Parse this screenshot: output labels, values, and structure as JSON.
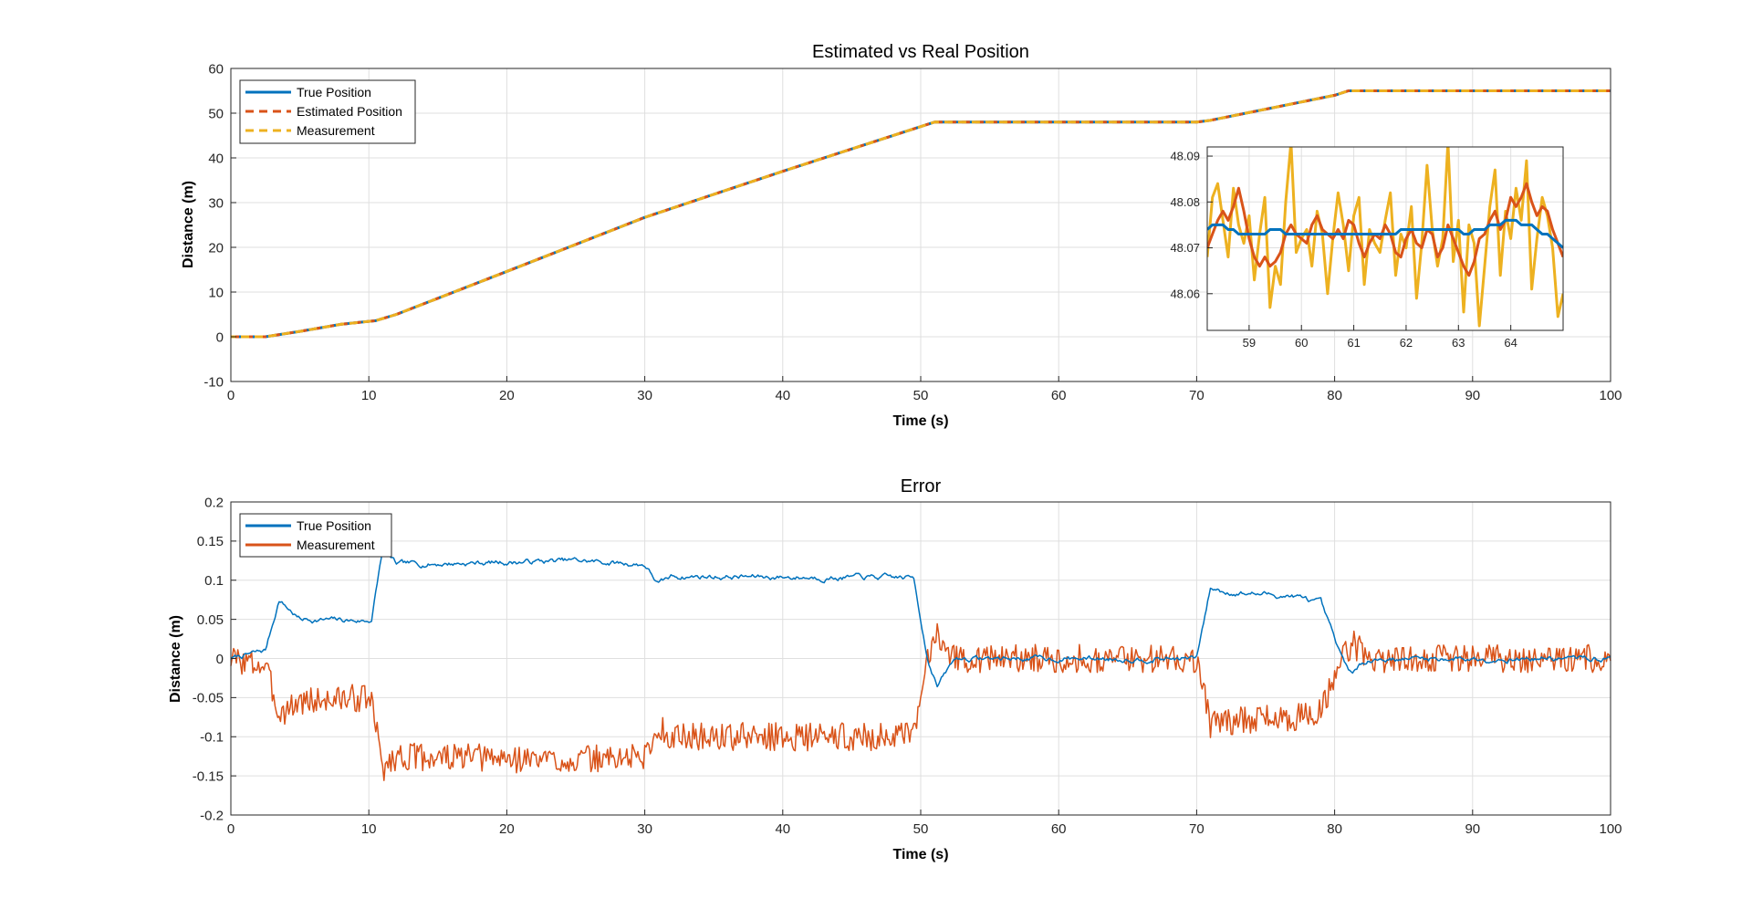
{
  "chart_data": [
    {
      "type": "line",
      "title": "Estimated vs Real Position",
      "xlabel": "Time (s)",
      "ylabel": "Distance (m)",
      "xlim": [
        0,
        100
      ],
      "ylim": [
        -10,
        60
      ],
      "xticks": [
        "0",
        "10",
        "20",
        "30",
        "40",
        "50",
        "60",
        "70",
        "80",
        "90",
        "100"
      ],
      "yticks": [
        "-10",
        "0",
        "10",
        "20",
        "30",
        "40",
        "50",
        "60"
      ],
      "grid": true,
      "legend_position": "top-left",
      "series": [
        {
          "name": "True Position",
          "color": "#0072BD",
          "style": "solid",
          "x": [
            0,
            2.5,
            5,
            8,
            10.5,
            12,
            20,
            30,
            40,
            50,
            51,
            60,
            70,
            71,
            80,
            81,
            90,
            100
          ],
          "y": [
            0,
            0,
            1.2,
            2.8,
            3.6,
            5,
            14.6,
            26.7,
            37,
            47,
            48,
            48,
            48,
            48.4,
            54,
            55,
            55,
            55
          ]
        },
        {
          "name": "Estimated Position",
          "color": "#D95319",
          "style": "dashed",
          "x": [
            0,
            2.5,
            5,
            8,
            10.5,
            12,
            20,
            30,
            40,
            50,
            51,
            60,
            70,
            71,
            80,
            81,
            90,
            100
          ],
          "y": [
            0,
            0,
            1.2,
            2.8,
            3.6,
            5,
            14.6,
            26.7,
            37,
            47,
            48,
            48,
            48,
            48.4,
            54,
            55,
            55,
            55
          ]
        },
        {
          "name": "Measurement",
          "color": "#EDB120",
          "style": "dashed",
          "x": [
            0,
            2.5,
            5,
            8,
            10.5,
            12,
            20,
            30,
            40,
            50,
            51,
            60,
            70,
            71,
            80,
            81,
            90,
            100
          ],
          "y": [
            0,
            0,
            1.2,
            2.8,
            3.6,
            5,
            14.6,
            26.7,
            37,
            47,
            48,
            48,
            48,
            48.4,
            54,
            55,
            55,
            55
          ]
        }
      ],
      "inset": {
        "xlim": [
          58.2,
          65
        ],
        "ylim": [
          48.052,
          48.092
        ],
        "xticks": [
          "59",
          "60",
          "61",
          "62",
          "63",
          "64"
        ],
        "yticks": [
          "48.06",
          "48.07",
          "48.08",
          "48.09"
        ],
        "x_start": 58.2,
        "x_step": 0.1,
        "true_position": [
          48.074,
          48.075,
          48.075,
          48.075,
          48.074,
          48.074,
          48.073,
          48.073,
          48.073,
          48.073,
          48.073,
          48.073,
          48.074,
          48.074,
          48.074,
          48.073,
          48.073,
          48.073,
          48.073,
          48.073,
          48.073,
          48.073,
          48.073,
          48.073,
          48.073,
          48.073,
          48.073,
          48.073,
          48.073,
          48.073,
          48.073,
          48.073,
          48.073,
          48.073,
          48.073,
          48.073,
          48.073,
          48.074,
          48.074,
          48.074,
          48.074,
          48.074,
          48.074,
          48.074,
          48.074,
          48.074,
          48.074,
          48.074,
          48.074,
          48.073,
          48.073,
          48.074,
          48.074,
          48.074,
          48.075,
          48.075,
          48.075,
          48.076,
          48.076,
          48.076,
          48.075,
          48.075,
          48.075,
          48.074,
          48.073,
          48.073,
          48.072,
          48.071,
          48.07
        ],
        "estimated_position": [
          48.07,
          48.073,
          48.076,
          48.078,
          48.076,
          48.079,
          48.083,
          48.078,
          48.072,
          48.068,
          48.066,
          48.068,
          48.066,
          48.067,
          48.069,
          48.073,
          48.075,
          48.073,
          48.072,
          48.071,
          48.075,
          48.077,
          48.074,
          48.073,
          48.072,
          48.074,
          48.072,
          48.076,
          48.075,
          48.071,
          48.068,
          48.071,
          48.073,
          48.072,
          48.075,
          48.073,
          48.069,
          48.068,
          48.072,
          48.074,
          48.071,
          48.07,
          48.074,
          48.073,
          48.068,
          48.07,
          48.075,
          48.072,
          48.069,
          48.066,
          48.064,
          48.067,
          48.072,
          48.073,
          48.076,
          48.078,
          48.074,
          48.076,
          48.081,
          48.079,
          48.081,
          48.084,
          48.08,
          48.077,
          48.079,
          48.078,
          48.074,
          48.071,
          48.068
        ],
        "measurement": [
          48.068,
          48.081,
          48.084,
          48.076,
          48.068,
          48.083,
          48.075,
          48.071,
          48.077,
          48.063,
          48.073,
          48.081,
          48.057,
          48.066,
          48.062,
          48.08,
          48.093,
          48.069,
          48.072,
          48.074,
          48.066,
          48.078,
          48.073,
          48.06,
          48.072,
          48.082,
          48.075,
          48.065,
          48.077,
          48.081,
          48.062,
          48.074,
          48.071,
          48.069,
          48.076,
          48.082,
          48.064,
          48.073,
          48.07,
          48.079,
          48.059,
          48.071,
          48.088,
          48.074,
          48.066,
          48.072,
          48.093,
          48.067,
          48.076,
          48.056,
          48.075,
          48.071,
          48.053,
          48.066,
          48.079,
          48.087,
          48.064,
          48.078,
          48.072,
          48.083,
          48.076,
          48.089,
          48.061,
          48.072,
          48.081,
          48.077,
          48.07,
          48.055,
          48.06
        ]
      }
    },
    {
      "type": "line",
      "title": "Error",
      "xlabel": "Time (s)",
      "ylabel": "Distance (m)",
      "xlim": [
        0,
        100
      ],
      "ylim": [
        -0.2,
        0.2
      ],
      "xticks": [
        "0",
        "10",
        "20",
        "30",
        "40",
        "50",
        "60",
        "70",
        "80",
        "90",
        "100"
      ],
      "yticks": [
        "-0.2",
        "-0.15",
        "-0.1",
        "-0.05",
        "0",
        "0.05",
        "0.1",
        "0.15",
        "0.2"
      ],
      "grid": true,
      "legend_position": "top-left",
      "sample_dt": 0.1,
      "series": [
        {
          "name": "True Position",
          "color": "#0072BD",
          "noise": 0.004,
          "seed": 7,
          "segments": [
            [
              0,
              0
            ],
            [
              2.5,
              0.01
            ],
            [
              3.5,
              0.075
            ],
            [
              5,
              0.05
            ],
            [
              9.8,
              0.048
            ],
            [
              10.2,
              0.05
            ],
            [
              11,
              0.14
            ],
            [
              12,
              0.12
            ],
            [
              25,
              0.125
            ],
            [
              30,
              0.12
            ],
            [
              31,
              0.095
            ],
            [
              32,
              0.105
            ],
            [
              49.5,
              0.103
            ],
            [
              50.5,
              0.0
            ],
            [
              51.2,
              -0.035
            ],
            [
              52.5,
              0.0
            ],
            [
              70,
              0.0
            ],
            [
              71,
              0.09
            ],
            [
              72,
              0.085
            ],
            [
              77,
              0.08
            ],
            [
              79,
              0.07
            ],
            [
              80.5,
              0.0
            ],
            [
              81.3,
              -0.02
            ],
            [
              82.5,
              0.0
            ],
            [
              100,
              0.0
            ]
          ]
        },
        {
          "name": "Measurement",
          "color": "#D95319",
          "noise": 0.018,
          "seed": 3,
          "segments": [
            [
              0,
              0
            ],
            [
              2.5,
              -0.01
            ],
            [
              3.5,
              -0.07
            ],
            [
              5,
              -0.055
            ],
            [
              9.8,
              -0.05
            ],
            [
              10.2,
              -0.055
            ],
            [
              11,
              -0.14
            ],
            [
              12,
              -0.125
            ],
            [
              25,
              -0.13
            ],
            [
              30,
              -0.125
            ],
            [
              31,
              -0.09
            ],
            [
              32,
              -0.1
            ],
            [
              49.5,
              -0.1
            ],
            [
              50.5,
              0.0
            ],
            [
              51.2,
              0.035
            ],
            [
              52.5,
              0.0
            ],
            [
              70,
              0.0
            ],
            [
              71,
              -0.085
            ],
            [
              72,
              -0.08
            ],
            [
              77,
              -0.075
            ],
            [
              79,
              -0.07
            ],
            [
              80.5,
              0.0
            ],
            [
              81.3,
              0.02
            ],
            [
              82.5,
              0.0
            ],
            [
              100,
              0.0
            ]
          ]
        }
      ]
    }
  ]
}
